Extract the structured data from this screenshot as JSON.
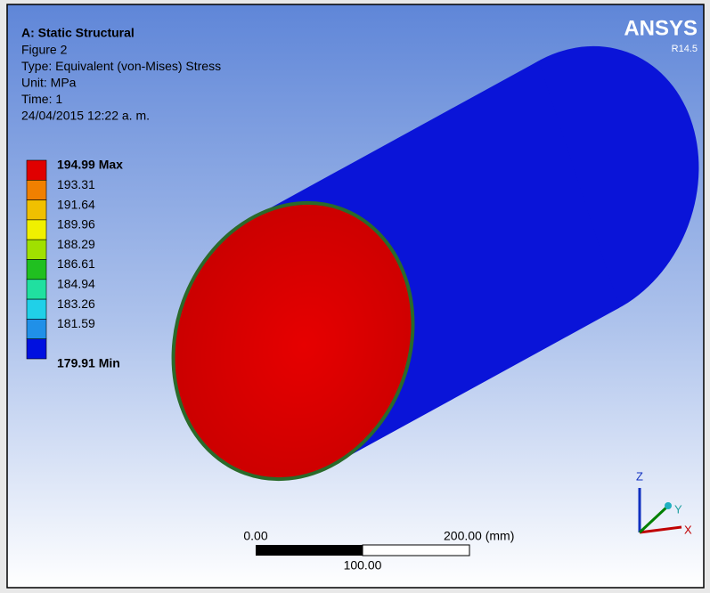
{
  "header": {
    "title": "A: Static Structural",
    "lines": [
      "Figure 2",
      "Type: Equivalent (von-Mises) Stress",
      "Unit: MPa",
      "Time: 1",
      "24/04/2015 12:22 a. m."
    ]
  },
  "logo": {
    "name": "ANSYS",
    "version": "R14.5"
  },
  "legend": {
    "entries": [
      {
        "label": "194.99 Max",
        "color": "#e00000"
      },
      {
        "label": "193.31",
        "color": "#f08000"
      },
      {
        "label": "191.64",
        "color": "#f0c000"
      },
      {
        "label": "189.96",
        "color": "#f0f000"
      },
      {
        "label": "188.29",
        "color": "#a0e000"
      },
      {
        "label": "186.61",
        "color": "#20c020"
      },
      {
        "label": "184.94",
        "color": "#20e0a0"
      },
      {
        "label": "183.26",
        "color": "#20d0e8"
      },
      {
        "label": "181.59",
        "color": "#2090e8"
      },
      {
        "label": "179.91 Min",
        "color": "#0010e0"
      }
    ]
  },
  "scale_bar": {
    "start": "0.00",
    "end": "200.00 (mm)",
    "middle": "100.00"
  },
  "triad": {
    "z": "Z",
    "y": "Y",
    "x": "X"
  }
}
